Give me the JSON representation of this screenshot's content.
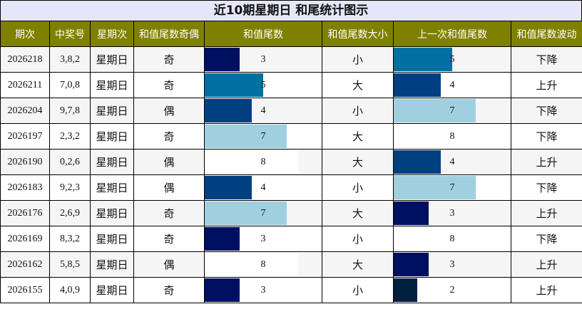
{
  "title": "近10期星期日 和尾统计图示",
  "headers": [
    "期次",
    "中奖号",
    "星期次",
    "和值尾数奇偶",
    "和值尾数",
    "和值尾数大小",
    "上一次和值尾数",
    "和值尾数波动"
  ],
  "colors": {
    "header_bg": "#808000",
    "title_bg": "#e6e6fa",
    "tail_colors": {
      "2": "#002040",
      "3": "#001060",
      "4": "#004080",
      "5": "#0070a0",
      "7": "#a0d0e0",
      "8": "#ffffff"
    }
  },
  "tail_max": 10,
  "rows": [
    {
      "period": "2026218",
      "numbers": "3,8,2",
      "weekday": "星期日",
      "parity": "奇",
      "tail": 3,
      "size": "小",
      "prev_tail": 5,
      "trend": "下降"
    },
    {
      "period": "2026211",
      "numbers": "7,0,8",
      "weekday": "星期日",
      "parity": "奇",
      "tail": 5,
      "size": "大",
      "prev_tail": 4,
      "trend": "上升"
    },
    {
      "period": "2026204",
      "numbers": "9,7,8",
      "weekday": "星期日",
      "parity": "偶",
      "tail": 4,
      "size": "小",
      "prev_tail": 7,
      "trend": "下降"
    },
    {
      "period": "2026197",
      "numbers": "2,3,2",
      "weekday": "星期日",
      "parity": "奇",
      "tail": 7,
      "size": "大",
      "prev_tail": 8,
      "trend": "下降"
    },
    {
      "period": "2026190",
      "numbers": "0,2,6",
      "weekday": "星期日",
      "parity": "偶",
      "tail": 8,
      "size": "大",
      "prev_tail": 4,
      "trend": "上升"
    },
    {
      "period": "2026183",
      "numbers": "9,2,3",
      "weekday": "星期日",
      "parity": "偶",
      "tail": 4,
      "size": "小",
      "prev_tail": 7,
      "trend": "下降"
    },
    {
      "period": "2026176",
      "numbers": "2,6,9",
      "weekday": "星期日",
      "parity": "奇",
      "tail": 7,
      "size": "大",
      "prev_tail": 3,
      "trend": "上升"
    },
    {
      "period": "2026169",
      "numbers": "8,3,2",
      "weekday": "星期日",
      "parity": "奇",
      "tail": 3,
      "size": "小",
      "prev_tail": 8,
      "trend": "下降"
    },
    {
      "period": "2026162",
      "numbers": "5,8,5",
      "weekday": "星期日",
      "parity": "偶",
      "tail": 8,
      "size": "大",
      "prev_tail": 3,
      "trend": "上升"
    },
    {
      "period": "2026155",
      "numbers": "4,0,9",
      "weekday": "星期日",
      "parity": "奇",
      "tail": 3,
      "size": "小",
      "prev_tail": 2,
      "trend": "上升"
    }
  ]
}
